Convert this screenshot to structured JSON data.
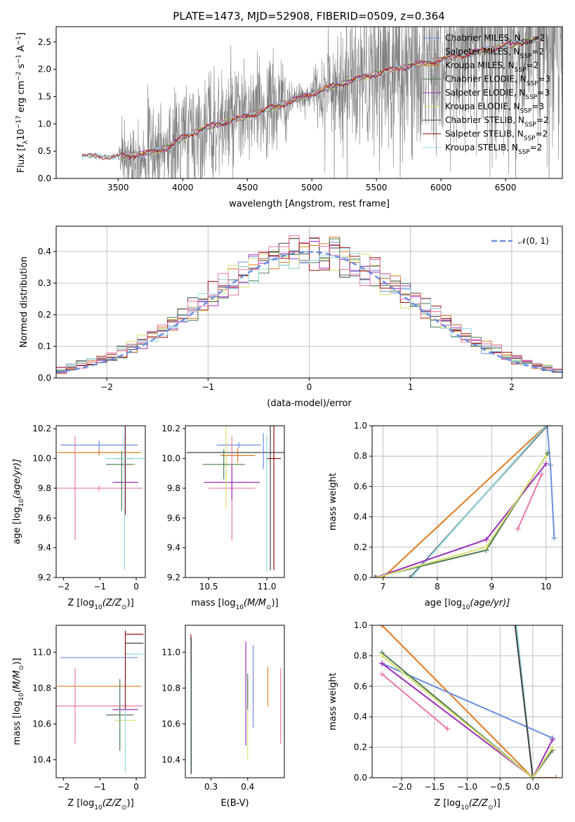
{
  "figure_title": "PLATE=1473, MJD=52908, FIBERID=0509, z=0.364",
  "colors": {
    "Chabrier MILES": "#6a8ee0",
    "Salpeter MILES": "#c7c7c7",
    "Kroupa MILES": "#e07b20",
    "Chabrier ELODIE": "#4c7a50",
    "Salpeter ELODIE": "#9b30b8",
    "Kroupa ELODIE": "#d8e070",
    "Chabrier STELIB": "#404040",
    "Salpeter STELIB": "#9b1010",
    "Kroupa STELIB": "#90d8e0",
    "pink": "#e878a8",
    "data": "#7f7f7f"
  },
  "chart_data": [
    {
      "id": "spectrum",
      "type": "line",
      "xlabel": "wavelength [Angstrom, rest frame]",
      "ylabel": "Flux [f",
      "ylabel_parts": [
        "Flux [f",
        "λ",
        "10",
        "−17",
        " erg cm",
        "−2",
        " s",
        "−1",
        " A",
        "−1",
        "]"
      ],
      "xlim": [
        3020,
        6940
      ],
      "ylim": [
        0,
        2.78
      ],
      "xticks": [
        "3500",
        "4000",
        "4500",
        "5000",
        "5500",
        "6000",
        "6500"
      ],
      "yticks": [
        "0.0",
        "0.5",
        "1.0",
        "1.5",
        "2.0",
        "2.5"
      ],
      "legend": [
        {
          "label": "Chabrier MILES, N",
          "sub": "SSP",
          "tail": "=2",
          "color_key": "Chabrier MILES"
        },
        {
          "label": "Salpeter MILES, N",
          "sub": "SSP",
          "tail": "=2",
          "color_key": "Salpeter MILES"
        },
        {
          "label": "Kroupa MILES, N",
          "sub": "SSP",
          "tail": "=2",
          "color_key": "Kroupa MILES"
        },
        {
          "label": "Chabrier ELODIE, N",
          "sub": "SSP",
          "tail": "=3",
          "color_key": "Chabrier ELODIE"
        },
        {
          "label": "Salpeter ELODIE, N",
          "sub": "SSP",
          "tail": "=3",
          "color_key": "Salpeter ELODIE"
        },
        {
          "label": "Kroupa ELODIE, N",
          "sub": "SSP",
          "tail": "=3",
          "color_key": "Kroupa ELODIE"
        },
        {
          "label": "Chabrier STELIB, N",
          "sub": "SSP",
          "tail": "=2",
          "color_key": "Chabrier STELIB"
        },
        {
          "label": "Salpeter STELIB, N",
          "sub": "SSP",
          "tail": "=2",
          "color_key": "Salpeter STELIB"
        },
        {
          "label": "Kroupa STELIB, N",
          "sub": "SSP",
          "tail": "=2",
          "color_key": "Kroupa STELIB"
        }
      ],
      "continuum": [
        [
          3220,
          0.41
        ],
        [
          3500,
          0.4
        ],
        [
          3700,
          0.45
        ],
        [
          3900,
          0.58
        ],
        [
          4000,
          0.75
        ],
        [
          4200,
          0.95
        ],
        [
          4400,
          1.08
        ],
        [
          4600,
          1.22
        ],
        [
          4800,
          1.38
        ],
        [
          5000,
          1.55
        ],
        [
          5200,
          1.72
        ],
        [
          5400,
          1.85
        ],
        [
          5600,
          1.98
        ],
        [
          5800,
          2.08
        ],
        [
          6000,
          2.18
        ],
        [
          6200,
          2.28
        ],
        [
          6400,
          2.38
        ],
        [
          6600,
          2.48
        ],
        [
          6760,
          2.55
        ]
      ],
      "data_noise_amp": [
        [
          3220,
          0.03
        ],
        [
          3500,
          0.05
        ],
        [
          3530,
          0.6
        ],
        [
          3800,
          0.9
        ],
        [
          4000,
          1.0
        ],
        [
          4500,
          0.9
        ],
        [
          4800,
          0.8
        ],
        [
          4850,
          0.2
        ],
        [
          5000,
          0.25
        ],
        [
          5100,
          0.9
        ],
        [
          5500,
          1.5
        ],
        [
          6000,
          1.6
        ],
        [
          6500,
          2.0
        ],
        [
          6900,
          2.2
        ]
      ]
    },
    {
      "id": "residuals",
      "type": "line",
      "xlabel": "(data-model)/error",
      "ylabel": "Normed distribution",
      "xlim": [
        -2.5,
        2.5
      ],
      "ylim": [
        0,
        0.48
      ],
      "xticks": [
        "−2",
        "−1",
        "0",
        "1",
        "2"
      ],
      "yticks": [
        "0.0",
        "0.1",
        "0.2",
        "0.3",
        "0.4"
      ],
      "legend": [
        {
          "label": "𝒩(0, 1)",
          "color_key": "Chabrier MILES"
        }
      ],
      "bin_width": 0.1,
      "grid": true
    },
    {
      "id": "age_vs_Z",
      "type": "scatter",
      "xlabel": "Z [log",
      "xlabel_parts": [
        "Z [log",
        "10",
        "(Z/Z",
        "⊙",
        ")]"
      ],
      "ylabel_parts": [
        "age  [log",
        "10",
        "(age/yr)]"
      ],
      "xlim": [
        -2.2,
        0.25
      ],
      "ylim": [
        9.2,
        10.22
      ],
      "xticks": [
        "−2",
        "−1",
        "0"
      ],
      "yticks": [
        "9.2",
        "9.4",
        "9.6",
        "9.8",
        "10.0",
        "10.2"
      ],
      "points": [
        {
          "x": -1.02,
          "y": 10.09,
          "xerr": 1.06,
          "yerr": 0.03,
          "c": "Chabrier MILES"
        },
        {
          "x": -1.02,
          "y": 10.04,
          "xerr": 1.15,
          "yerr": 0.02,
          "c": "Kroupa MILES"
        },
        {
          "x": -1.02,
          "y": 9.8,
          "xerr": 1.2,
          "yerr": 0.02,
          "c": "pink"
        },
        {
          "x": -1.68,
          "y": 9.8,
          "xerr": 0.0,
          "yerr": 0.35,
          "c": "pink"
        },
        {
          "x": -0.3,
          "y": 9.84,
          "xerr": 0.35,
          "yerr": 0.0,
          "c": "Salpeter ELODIE"
        },
        {
          "x": -0.3,
          "y": 9.96,
          "xerr": 0.3,
          "yerr": 0.0,
          "c": "Kroupa ELODIE"
        },
        {
          "x": -0.45,
          "y": 9.96,
          "xerr": 0.38,
          "yerr": 0.0,
          "c": "Chabrier ELODIE"
        },
        {
          "x": -0.32,
          "y": 10.0,
          "xerr": 0.25,
          "yerr": 0.15,
          "c": "Chabrier STELIB"
        },
        {
          "x": -0.3,
          "y": 9.92,
          "xerr": 0.0,
          "yerr": 0.3,
          "c": "Salpeter STELIB"
        },
        {
          "x": -0.32,
          "y": 9.95,
          "xerr": 0.0,
          "yerr": 0.7,
          "c": "Kroupa STELIB"
        },
        {
          "x": -0.4,
          "y": 9.85,
          "xerr": 0.0,
          "yerr": 0.2,
          "c": "Chabrier ELODIE"
        },
        {
          "x": -0.3,
          "y": 10.0,
          "xerr": 0.55,
          "yerr": 0.0,
          "c": "Kroupa STELIB"
        }
      ]
    },
    {
      "id": "age_vs_mass",
      "type": "scatter",
      "xlabel_parts": [
        "mass [log",
        "10",
        "(M/M",
        "⊙",
        ")]"
      ],
      "xlim": [
        10.3,
        11.15
      ],
      "ylim": [
        9.2,
        10.22
      ],
      "xticks": [
        "10.5",
        "11.0"
      ],
      "yticks": [
        "9.2",
        "9.4",
        "9.6",
        "9.8",
        "10.0",
        "10.2"
      ],
      "points": [
        {
          "x": 10.73,
          "y": 10.04,
          "xerr": 0.42,
          "yerr": 0.0,
          "c": "Chabrier STELIB"
        },
        {
          "x": 10.76,
          "y": 10.09,
          "xerr": 0.19,
          "yerr": 0.02,
          "c": "Chabrier MILES"
        },
        {
          "x": 10.75,
          "y": 10.02,
          "xerr": 0.15,
          "yerr": 0.05,
          "c": "Kroupa MILES"
        },
        {
          "x": 10.7,
          "y": 9.8,
          "xerr": 0.2,
          "yerr": 0.35,
          "c": "pink"
        },
        {
          "x": 10.7,
          "y": 9.84,
          "xerr": 0.24,
          "yerr": 0.12,
          "c": "Salpeter ELODIE"
        },
        {
          "x": 10.65,
          "y": 9.96,
          "xerr": 0.13,
          "yerr": 0.3,
          "c": "Kroupa ELODIE"
        },
        {
          "x": 10.63,
          "y": 9.96,
          "xerr": 0.18,
          "yerr": 0.1,
          "c": "Chabrier ELODIE"
        },
        {
          "x": 11.06,
          "y": 10.0,
          "xerr": 0.06,
          "yerr": 0.75,
          "c": "Salpeter STELIB"
        },
        {
          "x": 11.0,
          "y": 9.7,
          "xerr": 0.0,
          "yerr": 0.46,
          "c": "Kroupa STELIB"
        },
        {
          "x": 11.03,
          "y": 9.95,
          "xerr": 0.0,
          "yerr": 0.7,
          "c": "Chabrier STELIB"
        },
        {
          "x": 10.97,
          "y": 10.05,
          "xerr": 0.0,
          "yerr": 0.12,
          "c": "Chabrier MILES"
        }
      ]
    },
    {
      "id": "weight_vs_age",
      "type": "line",
      "xlabel_parts": [
        "age  [log",
        "10",
        "(age/yr)]"
      ],
      "ylabel": "mass weight",
      "xlim": [
        6.8,
        10.3
      ],
      "ylim": [
        0,
        1.0
      ],
      "xticks": [
        "7",
        "8",
        "9",
        "10"
      ],
      "yticks": [
        "0.0",
        "0.2",
        "0.4",
        "0.6",
        "0.8",
        "1.0"
      ],
      "grid": true,
      "series": [
        {
          "c": "Kroupa MILES",
          "x": [
            7.0,
            10.0
          ],
          "y": [
            0.0,
            1.0
          ]
        },
        {
          "c": "Chabrier MILES",
          "x": [
            10.02,
            10.08,
            10.15
          ],
          "y": [
            1.0,
            0.74,
            0.26
          ]
        },
        {
          "c": "Salpeter MILES",
          "x": [
            7.5,
            10.0
          ],
          "y": [
            0.0,
            1.0
          ]
        },
        {
          "c": "Chabrier STELIB",
          "x": [
            7.5,
            10.02
          ],
          "y": [
            0.0,
            1.0
          ]
        },
        {
          "c": "Kroupa STELIB",
          "x": [
            7.52,
            10.0
          ],
          "y": [
            0.0,
            1.0
          ]
        },
        {
          "c": "Chabrier ELODIE",
          "x": [
            6.85,
            8.9,
            10.03
          ],
          "y": [
            0.0,
            0.18,
            0.82
          ]
        },
        {
          "c": "Salpeter ELODIE",
          "x": [
            6.87,
            8.9,
            10.0
          ],
          "y": [
            0.0,
            0.25,
            0.75
          ]
        },
        {
          "c": "Kroupa ELODIE",
          "x": [
            6.88,
            8.9,
            10.0
          ],
          "y": [
            0.0,
            0.2,
            0.8
          ]
        },
        {
          "c": "pink",
          "x": [
            9.48,
            9.92
          ],
          "y": [
            0.32,
            0.68
          ]
        }
      ]
    },
    {
      "id": "mass_vs_Z",
      "type": "scatter",
      "xlabel_parts": [
        "Z [log",
        "10",
        "(Z/Z",
        "⊙",
        ")]"
      ],
      "ylabel_parts": [
        "mass [log",
        "10",
        "(M/M",
        "⊙",
        ")]"
      ],
      "xlim": [
        -2.2,
        0.25
      ],
      "ylim": [
        10.3,
        11.15
      ],
      "xticks": [
        "−2",
        "−1",
        "0"
      ],
      "yticks": [
        "10.4",
        "10.6",
        "10.8",
        "11.0"
      ],
      "points": [
        {
          "x": -1.02,
          "y": 10.97,
          "xerr": 1.06,
          "yerr": 0.0,
          "c": "Chabrier MILES"
        },
        {
          "x": -1.02,
          "y": 10.81,
          "xerr": 1.15,
          "yerr": 0.0,
          "c": "Kroupa MILES"
        },
        {
          "x": -1.02,
          "y": 10.7,
          "xerr": 1.2,
          "yerr": 0.0,
          "c": "pink"
        },
        {
          "x": -1.68,
          "y": 10.7,
          "xerr": 0.0,
          "yerr": 0.21,
          "c": "pink"
        },
        {
          "x": -0.3,
          "y": 10.68,
          "xerr": 0.35,
          "yerr": 0.0,
          "c": "Salpeter ELODIE"
        },
        {
          "x": -0.3,
          "y": 10.62,
          "xerr": 0.3,
          "yerr": 0.0,
          "c": "Kroupa ELODIE"
        },
        {
          "x": -0.45,
          "y": 10.65,
          "xerr": 0.38,
          "yerr": 0.2,
          "c": "Chabrier ELODIE"
        },
        {
          "x": -0.05,
          "y": 11.05,
          "xerr": 0.25,
          "yerr": 0.0,
          "c": "Chabrier STELIB"
        },
        {
          "x": -0.05,
          "y": 11.1,
          "xerr": 0.25,
          "yerr": 0.0,
          "c": "Salpeter STELIB"
        },
        {
          "x": -0.05,
          "y": 10.99,
          "xerr": 0.25,
          "yerr": 0.0,
          "c": "Kroupa STELIB"
        },
        {
          "x": -0.3,
          "y": 10.7,
          "xerr": 0.0,
          "yerr": 0.37,
          "c": "Kroupa STELIB"
        },
        {
          "x": -0.3,
          "y": 10.9,
          "xerr": 0.0,
          "yerr": 0.22,
          "c": "Salpeter STELIB"
        }
      ]
    },
    {
      "id": "mass_vs_ebv",
      "type": "scatter",
      "xlabel": "E(B-V)",
      "xlim": [
        0.23,
        0.5
      ],
      "ylim": [
        10.3,
        11.15
      ],
      "xticks": [
        "0.3",
        "0.4"
      ],
      "yticks": [
        "10.4",
        "10.6",
        "10.8",
        "11.0"
      ],
      "points": [
        {
          "x": 0.245,
          "y": 11.0,
          "xerr": 0.0,
          "yerr": 0.1,
          "c": "Salpeter STELIB"
        },
        {
          "x": 0.245,
          "y": 10.7,
          "xerr": 0.0,
          "yerr": 0.37,
          "c": "Kroupa STELIB"
        },
        {
          "x": 0.246,
          "y": 10.7,
          "xerr": 0.0,
          "yerr": 0.38,
          "c": "Chabrier STELIB"
        },
        {
          "x": 0.395,
          "y": 10.77,
          "xerr": 0.0,
          "yerr": 0.29,
          "c": "Salpeter ELODIE"
        },
        {
          "x": 0.4,
          "y": 10.62,
          "xerr": 0.0,
          "yerr": 0.22,
          "c": "Kroupa ELODIE"
        },
        {
          "x": 0.4,
          "y": 10.78,
          "xerr": 0.0,
          "yerr": 0.1,
          "c": "Chabrier ELODIE"
        },
        {
          "x": 0.415,
          "y": 10.81,
          "xerr": 0.0,
          "yerr": 0.23,
          "c": "Chabrier MILES"
        },
        {
          "x": 0.455,
          "y": 10.81,
          "xerr": 0.0,
          "yerr": 0.11,
          "c": "Kroupa MILES"
        },
        {
          "x": 0.49,
          "y": 10.7,
          "xerr": 0.0,
          "yerr": 0.21,
          "c": "pink"
        }
      ]
    },
    {
      "id": "weight_vs_Z",
      "type": "line",
      "xlabel_parts": [
        "Z [log",
        "10",
        "(Z/Z",
        "⊙",
        ")]"
      ],
      "ylabel": "mass weight",
      "xlim": [
        -2.45,
        0.45
      ],
      "ylim": [
        0,
        1.0
      ],
      "xticks": [
        "−2.0",
        "−1.5",
        "−1.0",
        "−0.5",
        "0.0"
      ],
      "yticks": [
        "0.0",
        "0.2",
        "0.4",
        "0.6",
        "0.8",
        "1.0"
      ],
      "grid": true,
      "series": [
        {
          "c": "Kroupa MILES",
          "x": [
            -2.3,
            0.0
          ],
          "y": [
            1.0,
            0.0
          ]
        },
        {
          "c": "Kroupa MILES",
          "x": [
            0.0,
            0.35
          ],
          "y": [
            0.0,
            0.0
          ]
        },
        {
          "c": "Chabrier MILES",
          "x": [
            -2.3,
            0.3
          ],
          "y": [
            0.75,
            0.26
          ]
        },
        {
          "c": "Kroupa STELIB",
          "x": [
            -0.25,
            0.0
          ],
          "y": [
            1.0,
            0.0
          ]
        },
        {
          "c": "Chabrier STELIB",
          "x": [
            -0.27,
            0.0
          ],
          "y": [
            1.0,
            0.0
          ]
        },
        {
          "c": "Chabrier ELODIE",
          "x": [
            -2.3,
            0.0,
            0.3
          ],
          "y": [
            0.82,
            0.0,
            0.18
          ]
        },
        {
          "c": "Salpeter ELODIE",
          "x": [
            -2.3,
            0.0,
            0.3
          ],
          "y": [
            0.75,
            0.0,
            0.25
          ]
        },
        {
          "c": "Kroupa ELODIE",
          "x": [
            -2.3,
            0.0,
            0.3
          ],
          "y": [
            0.8,
            0.0,
            0.2
          ]
        },
        {
          "c": "pink",
          "x": [
            -2.3,
            -1.3
          ],
          "y": [
            0.68,
            0.32
          ]
        }
      ]
    }
  ]
}
